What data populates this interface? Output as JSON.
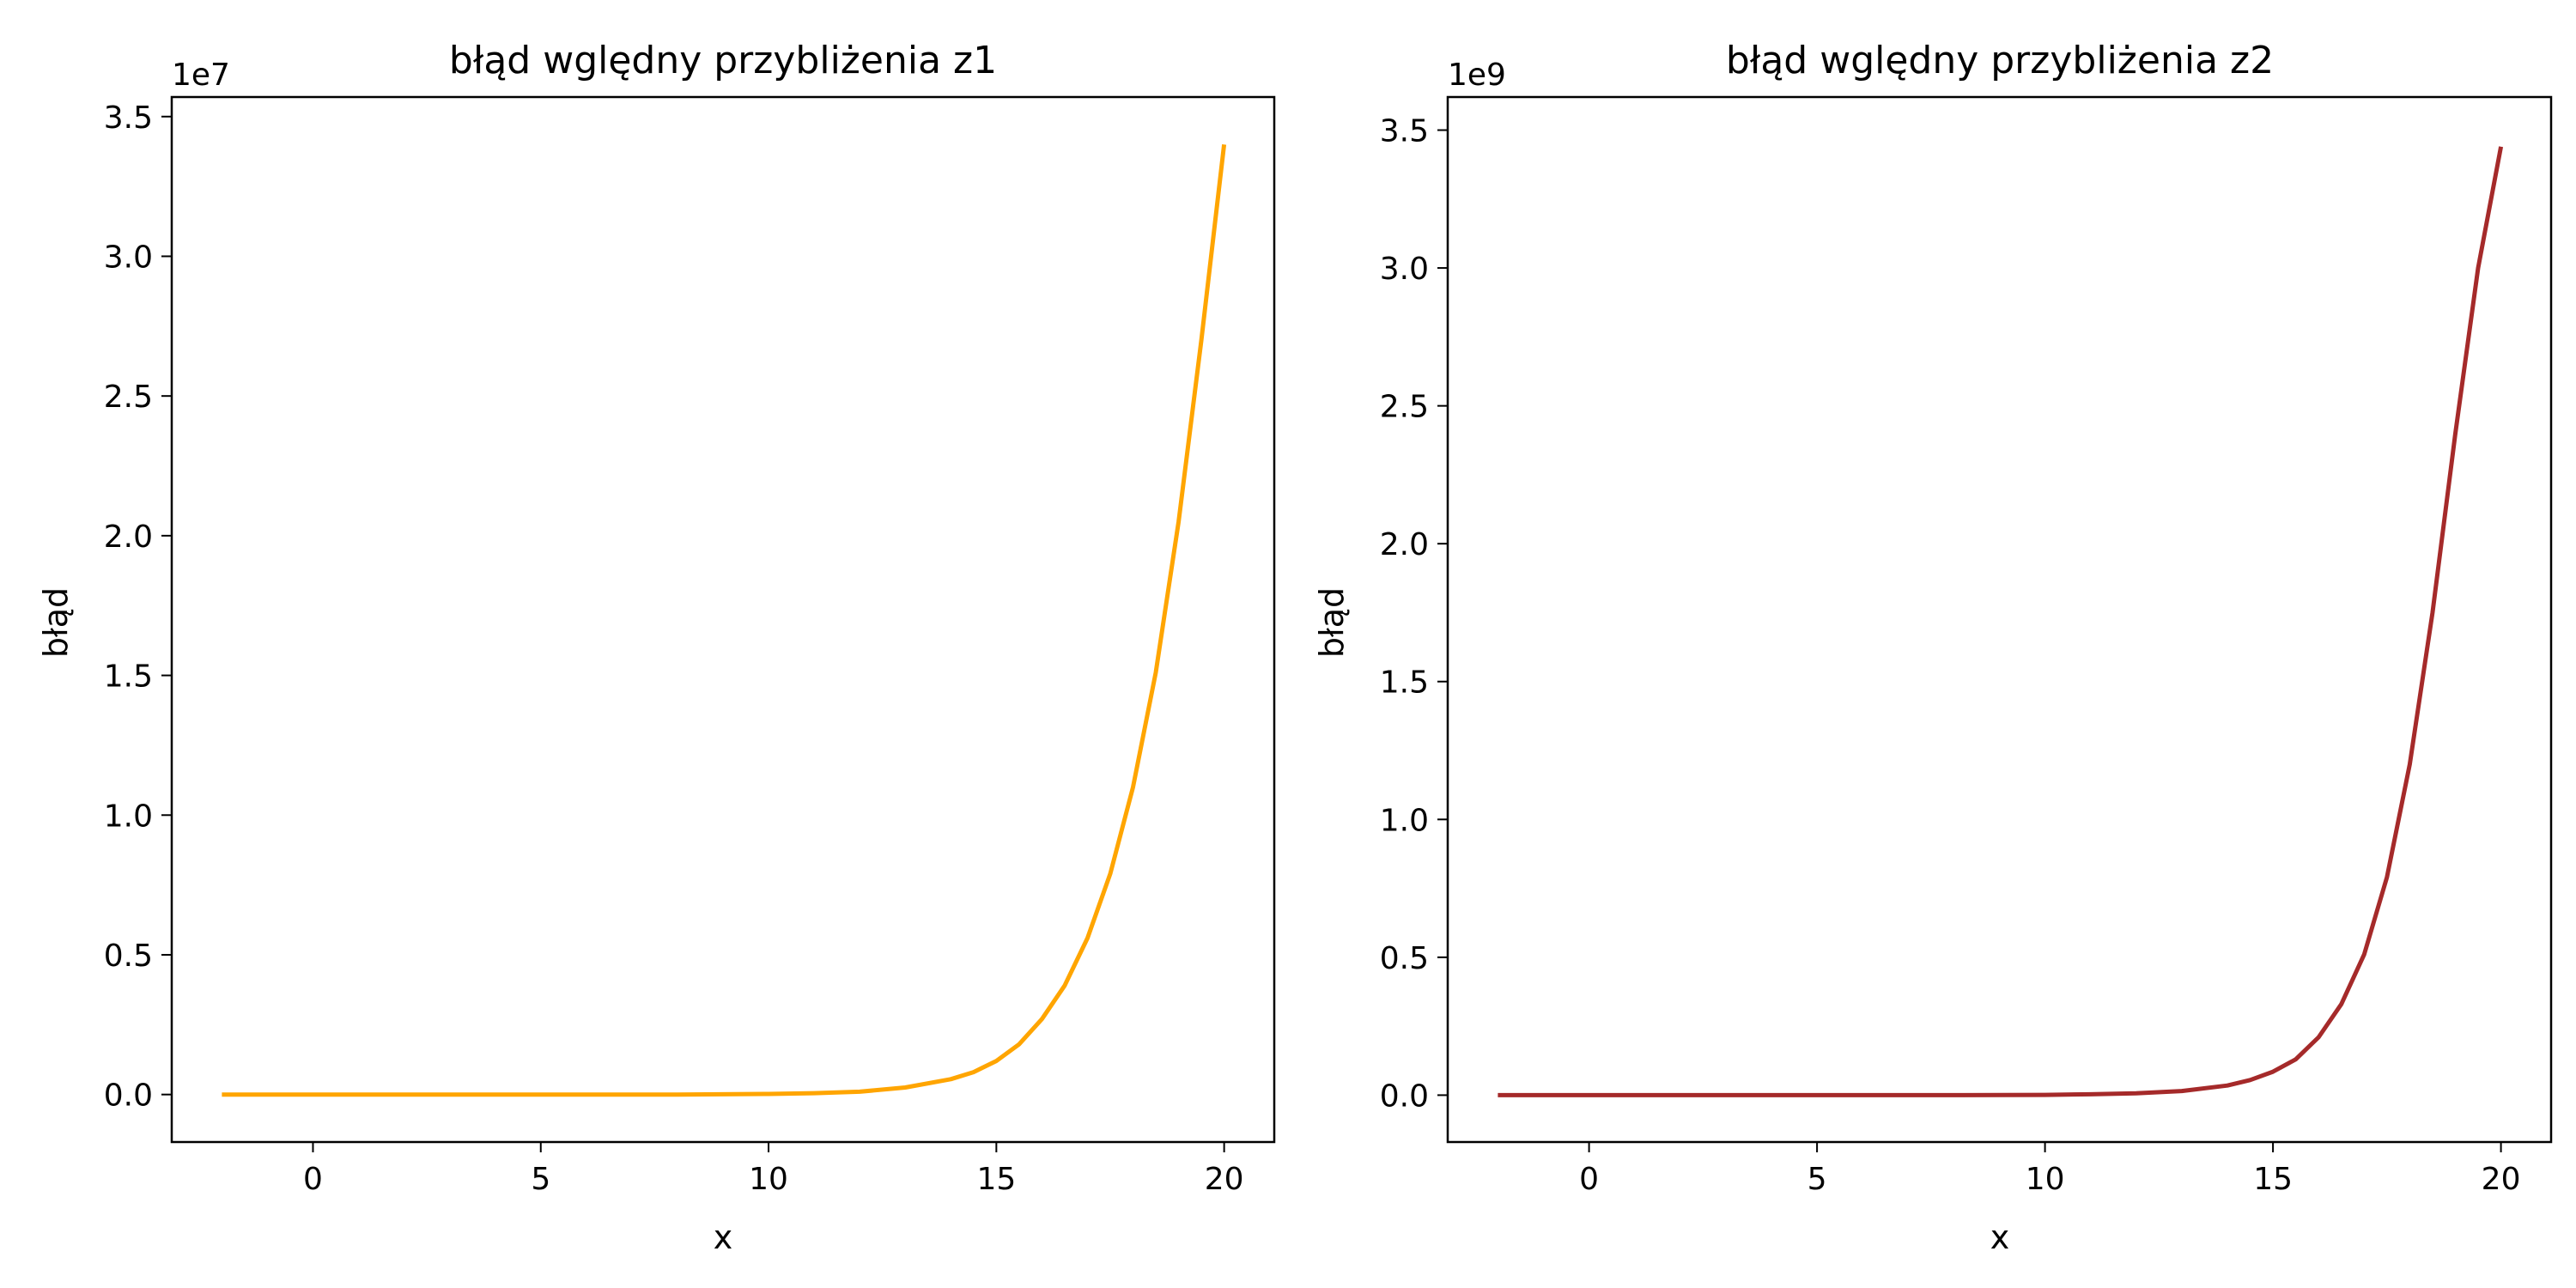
{
  "chart_data": [
    {
      "type": "line",
      "title": "błąd wględny przybliżenia z1",
      "xlabel": "x",
      "ylabel": "błąd",
      "y_offset_text": "1e7",
      "y_scale_factor": 10000000,
      "xlim": [
        -3.1,
        21.1
      ],
      "ylim": [
        -1700000,
        35700000
      ],
      "x_ticks": [
        0,
        5,
        10,
        15,
        20
      ],
      "x_tick_labels": [
        "0",
        "5",
        "10",
        "15",
        "20"
      ],
      "y_ticks": [
        0,
        5000000,
        10000000,
        15000000,
        20000000,
        25000000,
        30000000,
        35000000
      ],
      "y_tick_labels": [
        "0.0",
        "0.5",
        "1.0",
        "1.5",
        "2.0",
        "2.5",
        "3.0",
        "3.5"
      ],
      "grid": false,
      "series": [
        {
          "color": "#FFA500",
          "x": [
            -2,
            0,
            2,
            4,
            6,
            8,
            10,
            11,
            12,
            13,
            14,
            14.5,
            15,
            15.5,
            16,
            16.5,
            17,
            17.5,
            18,
            18.5,
            19,
            19.5,
            20
          ],
          "y": [
            0,
            0,
            0,
            0,
            0,
            0,
            20000,
            50000,
            100000,
            250000,
            550000,
            800000,
            1200000,
            1800000,
            2700000,
            3900000,
            5600000,
            7900000,
            11000000,
            15100000,
            20500000,
            27000000,
            34000000
          ]
        }
      ]
    },
    {
      "type": "line",
      "title": "błąd wględny przybliżenia z2",
      "xlabel": "x",
      "ylabel": "błąd",
      "y_offset_text": "1e9",
      "y_scale_factor": 1000000000,
      "xlim": [
        -3.1,
        21.1
      ],
      "ylim": [
        -170000000,
        3620000000
      ],
      "x_ticks": [
        0,
        5,
        10,
        15,
        20
      ],
      "x_tick_labels": [
        "0",
        "5",
        "10",
        "15",
        "20"
      ],
      "y_ticks": [
        0,
        500000000,
        1000000000,
        1500000000,
        2000000000,
        2500000000,
        3000000000,
        3500000000
      ],
      "y_tick_labels": [
        "0.0",
        "0.5",
        "1.0",
        "1.5",
        "2.0",
        "2.5",
        "3.0",
        "3.5"
      ],
      "grid": false,
      "series": [
        {
          "color": "#A52A2A",
          "x": [
            -2,
            0,
            2,
            4,
            6,
            8,
            10,
            11,
            12,
            13,
            14,
            14.5,
            15,
            15.5,
            16,
            16.5,
            17,
            17.5,
            18,
            18.5,
            19,
            19.5,
            20
          ],
          "y": [
            0,
            0,
            0,
            0,
            0,
            0,
            1000000,
            3000000,
            7000000,
            15000000,
            35000000,
            55000000,
            85000000,
            130000000,
            210000000,
            330000000,
            510000000,
            790000000,
            1200000000,
            1750000000,
            2400000000,
            3000000000,
            3440000000
          ]
        }
      ]
    }
  ]
}
